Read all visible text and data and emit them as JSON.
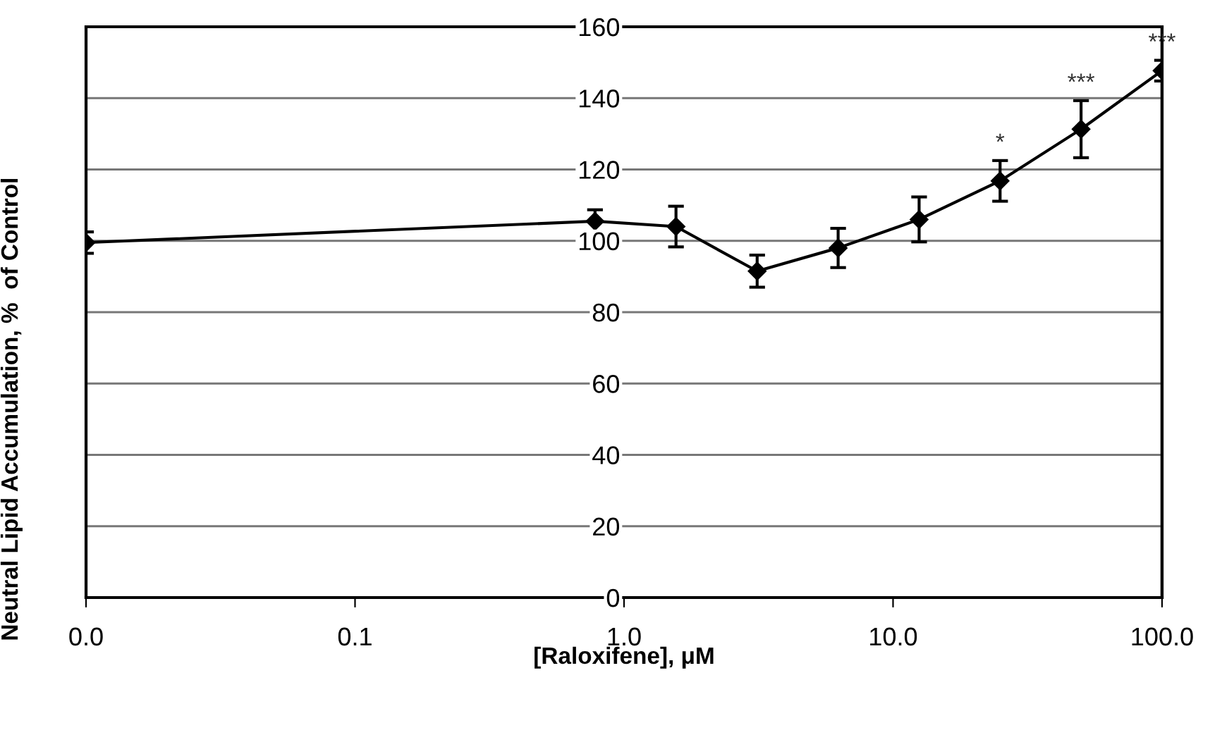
{
  "chart_data": {
    "type": "line",
    "xlabel": "[Raloxifene], μM",
    "ylabel": "Neutral Lipid Accumulation, %  of Control",
    "x": [
      0.01,
      0.78,
      1.56,
      3.125,
      6.25,
      12.5,
      25,
      50,
      100
    ],
    "series": [
      {
        "color": "#000000",
        "values": [
          99.5,
          105.5,
          104,
          91.5,
          98,
          106,
          116.8,
          131.3,
          147.7
        ],
        "errors": [
          3,
          3.2,
          5.7,
          4.5,
          5.5,
          6.3,
          5.7,
          8,
          2.9
        ]
      }
    ],
    "log": "x",
    "xlim": [
      0.01,
      100
    ],
    "xticks": [
      {
        "value": 0.01,
        "label": "0.0"
      },
      {
        "value": 0.1,
        "label": "0.1"
      },
      {
        "value": 1,
        "label": "1.0"
      },
      {
        "value": 10,
        "label": "10.0"
      },
      {
        "value": 100,
        "label": "100.0"
      }
    ],
    "ylim": [
      0,
      160
    ],
    "yticks": [
      0,
      20,
      40,
      60,
      80,
      100,
      120,
      140,
      160
    ],
    "grid": "y",
    "legend": false,
    "marker": "diamond",
    "line_style": "solid",
    "annotations": [
      {
        "text": "*",
        "x": 25,
        "y": 122.5
      },
      {
        "text": "***",
        "x": 50,
        "y": 139.3
      },
      {
        "text": "***",
        "x": 100,
        "y": 150.6
      }
    ]
  }
}
